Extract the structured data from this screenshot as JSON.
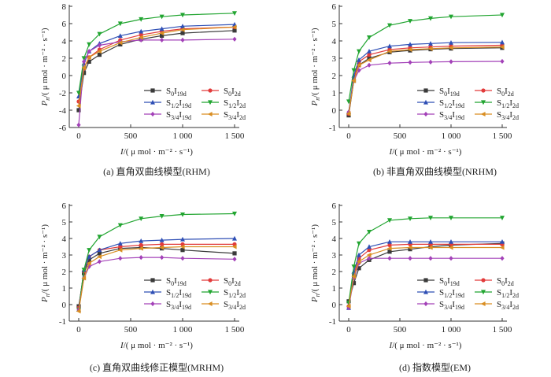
{
  "charts": [
    {
      "id": "a",
      "caption": "(a)  直角双曲线模型(RHM)",
      "ylim": [
        -6,
        8
      ],
      "yticks": [
        -6,
        -4,
        -2,
        0,
        2,
        4,
        6,
        8
      ],
      "xlim": [
        0,
        1500
      ],
      "xticks": [
        0,
        500,
        1000,
        1500
      ],
      "xticklabels": [
        "0",
        "500",
        "1 000",
        "1 500"
      ],
      "series": [
        {
          "values": [
            -4.0,
            0.3,
            1.6,
            2.4,
            3.6,
            4.2,
            4.6,
            4.9,
            5.2
          ]
        },
        {
          "values": [
            -3.0,
            0.8,
            2.1,
            3.0,
            4.1,
            4.7,
            5.1,
            5.4,
            5.6
          ]
        },
        {
          "values": [
            -2.4,
            1.4,
            2.8,
            3.7,
            4.6,
            5.1,
            5.4,
            5.7,
            5.9
          ]
        },
        {
          "values": [
            -2.0,
            2.0,
            3.6,
            4.8,
            6.0,
            6.5,
            6.8,
            7.0,
            7.2
          ]
        },
        {
          "values": [
            -5.7,
            1.6,
            2.8,
            3.5,
            3.9,
            4.1,
            4.1,
            4.1,
            4.2
          ]
        },
        {
          "values": [
            -3.5,
            0.9,
            2.1,
            2.8,
            3.8,
            4.4,
            4.9,
            5.3,
            5.6
          ]
        }
      ]
    },
    {
      "id": "b",
      "caption": "(b)  非直角双曲线模型(NRHM)",
      "ylim": [
        -1,
        6
      ],
      "yticks": [
        -1,
        0,
        1,
        2,
        3,
        4,
        5,
        6
      ],
      "xlim": [
        0,
        1500
      ],
      "xticks": [
        0,
        500,
        1000,
        1500
      ],
      "xticklabels": [
        "0",
        "500",
        "1 000",
        "1 500"
      ],
      "series": [
        {
          "values": [
            -0.3,
            1.7,
            2.6,
            3.0,
            3.35,
            3.45,
            3.52,
            3.56,
            3.6
          ]
        },
        {
          "values": [
            -0.2,
            1.8,
            2.8,
            3.2,
            3.5,
            3.6,
            3.65,
            3.7,
            3.75
          ]
        },
        {
          "values": [
            -0.1,
            2.0,
            2.9,
            3.4,
            3.7,
            3.8,
            3.85,
            3.9,
            3.92
          ]
        },
        {
          "values": [
            0.5,
            2.3,
            3.4,
            4.2,
            4.9,
            5.15,
            5.3,
            5.4,
            5.5
          ]
        },
        {
          "values": [
            -0.1,
            1.7,
            2.3,
            2.6,
            2.72,
            2.76,
            2.78,
            2.8,
            2.82
          ]
        },
        {
          "values": [
            -0.2,
            1.7,
            2.6,
            2.9,
            3.4,
            3.5,
            3.55,
            3.6,
            3.65
          ]
        }
      ]
    },
    {
      "id": "c",
      "caption": "(c)  直角双曲线修正模型(MRHM)",
      "ylim": [
        -1,
        6
      ],
      "yticks": [
        -1,
        0,
        1,
        2,
        3,
        4,
        5,
        6
      ],
      "xlim": [
        0,
        1500
      ],
      "xticks": [
        0,
        500,
        1000,
        1500
      ],
      "xticklabels": [
        "0",
        "500",
        "1 000",
        "1 500"
      ],
      "series": [
        {
          "values": [
            -0.1,
            1.9,
            2.7,
            3.1,
            3.4,
            3.45,
            3.4,
            3.3,
            3.1
          ]
        },
        {
          "values": [
            -0.2,
            2.0,
            2.9,
            3.3,
            3.5,
            3.6,
            3.65,
            3.65,
            3.65
          ]
        },
        {
          "values": [
            -0.3,
            2.1,
            2.9,
            3.3,
            3.7,
            3.85,
            3.9,
            3.95,
            4.0
          ]
        },
        {
          "values": [
            -0.3,
            2.1,
            3.3,
            4.1,
            4.8,
            5.2,
            5.35,
            5.45,
            5.5
          ]
        },
        {
          "values": [
            -0.3,
            1.6,
            2.3,
            2.6,
            2.8,
            2.85,
            2.85,
            2.8,
            2.75
          ]
        },
        {
          "values": [
            -0.4,
            1.6,
            2.5,
            2.9,
            3.3,
            3.4,
            3.45,
            3.5,
            3.5
          ]
        }
      ]
    },
    {
      "id": "d",
      "caption": "(d)  指数模型(EM)",
      "ylim": [
        -1,
        6
      ],
      "yticks": [
        -1,
        0,
        1,
        2,
        3,
        4,
        5,
        6
      ],
      "xlim": [
        0,
        1500
      ],
      "xticks": [
        0,
        500,
        1000,
        1500
      ],
      "xticklabels": [
        "0",
        "500",
        "1 000",
        "1 500"
      ],
      "series": [
        {
          "values": [
            0.2,
            1.3,
            2.2,
            2.7,
            3.2,
            3.35,
            3.5,
            3.6,
            3.7
          ]
        },
        {
          "values": [
            -0.1,
            1.8,
            2.8,
            3.3,
            3.6,
            3.65,
            3.65,
            3.65,
            3.65
          ]
        },
        {
          "values": [
            -0.2,
            2.0,
            3.0,
            3.5,
            3.8,
            3.8,
            3.8,
            3.8,
            3.8
          ]
        },
        {
          "values": [
            0.1,
            2.3,
            3.7,
            4.4,
            5.1,
            5.2,
            5.25,
            5.25,
            5.25
          ]
        },
        {
          "values": [
            -0.2,
            1.6,
            2.5,
            2.8,
            2.8,
            2.8,
            2.8,
            2.8,
            2.8
          ]
        },
        {
          "values": [
            -0.1,
            1.7,
            2.6,
            3.0,
            3.4,
            3.45,
            3.45,
            3.45,
            3.45
          ]
        }
      ]
    }
  ],
  "chart_data": {
    "type": "line",
    "x": [
      0,
      50,
      100,
      200,
      400,
      600,
      800,
      1000,
      1500
    ],
    "series_names": [
      "S0I19d",
      "S0I2d",
      "S1/2I19d",
      "S1/2I2d",
      "S3/4I19d",
      "S3/4I2d"
    ]
  },
  "series_styles": [
    {
      "main": "S",
      "sub1": "0",
      "mid": "I",
      "sub2": "19d",
      "color": "#3a3a3a",
      "marker": "square"
    },
    {
      "main": "S",
      "sub1": "0",
      "mid": "I",
      "sub2": "2d",
      "color": "#e23b3b",
      "marker": "circle"
    },
    {
      "main": "S",
      "sub1": "1/2",
      "mid": "I",
      "sub2": "19d",
      "color": "#2f4fb5",
      "marker": "triangle-up"
    },
    {
      "main": "S",
      "sub1": "1/2",
      "mid": "I",
      "sub2": "2d",
      "color": "#22a531",
      "marker": "triangle-down"
    },
    {
      "main": "S",
      "sub1": "3/4",
      "mid": "I",
      "sub2": "19d",
      "color": "#a341b8",
      "marker": "diamond"
    },
    {
      "main": "S",
      "sub1": "3/4",
      "mid": "I",
      "sub2": "2d",
      "color": "#d98e22",
      "marker": "triangle-left"
    }
  ],
  "labels": {
    "y_main": "P",
    "y_sub": "n",
    "y_unit": "/( μ mol · m⁻² · s⁻¹)",
    "x_main": "I",
    "x_unit": "/( μ mol · m⁻² · s⁻¹)"
  }
}
